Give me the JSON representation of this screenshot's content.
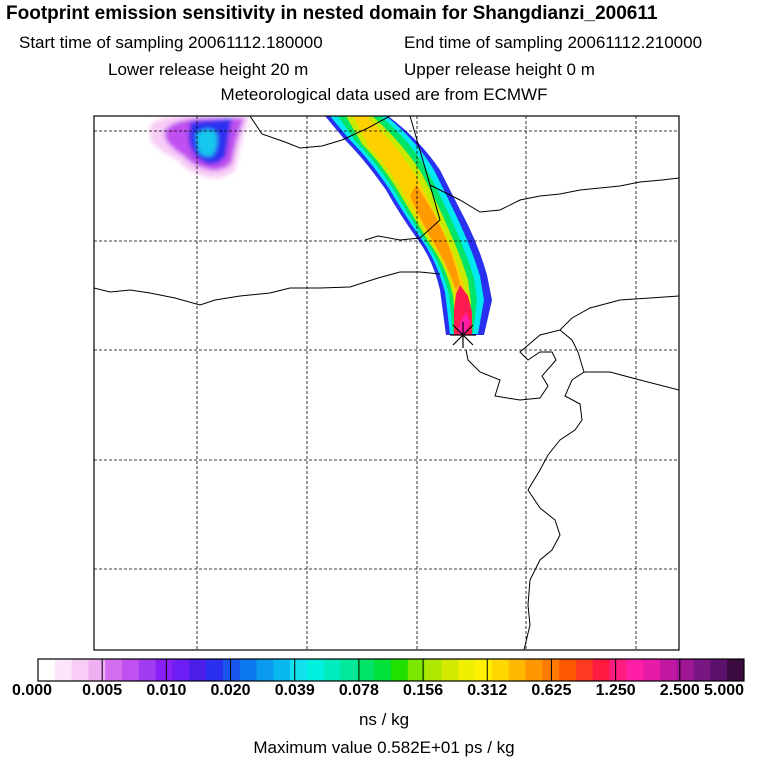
{
  "header": {
    "title": "Footprint emission sensitivity in nested domain for Shangdianzi_200611",
    "start_label": "Start time of sampling 20061112.180000",
    "end_label": "End time of sampling 20061112.210000",
    "lower_label": "Lower release height   20 m",
    "upper_label": "Upper release height    0 m",
    "met_label": "Meteorological data used are from ECMWF"
  },
  "legend": {
    "tick_labels": [
      "0.000",
      "0.005",
      "0.010",
      "0.020",
      "0.039",
      "0.078",
      "0.156",
      "0.312",
      "0.625",
      "1.250",
      "2.500",
      "5.000"
    ],
    "colors": [
      "#ffffff",
      "#fbe6fb",
      "#f7ccf6",
      "#f0aef3",
      "#d46cf0",
      "#c050ef",
      "#a23cf3",
      "#8a1ff6",
      "#6e1ff6",
      "#4b1fe8",
      "#2a30f0",
      "#1a56ee",
      "#0a78ee",
      "#0a9aee",
      "#0ab8f0",
      "#12e2ee",
      "#00f0e0",
      "#00ecbf",
      "#00e89a",
      "#00e468",
      "#00e23a",
      "#20e000",
      "#7ce800",
      "#aee800",
      "#d2ea00",
      "#eef000",
      "#fff000",
      "#ffd800",
      "#ffb800",
      "#ff9800",
      "#ff7a00",
      "#ff5800",
      "#ff3a20",
      "#ff1a40",
      "#ff1e80",
      "#ff1ea6",
      "#e81aa8",
      "#c018a2",
      "#9e1694",
      "#7a1682",
      "#5c126c",
      "#3a0a40"
    ],
    "unit": "ns / kg",
    "max_value": "Maximum value  0.582E+01 ps / kg"
  }
}
